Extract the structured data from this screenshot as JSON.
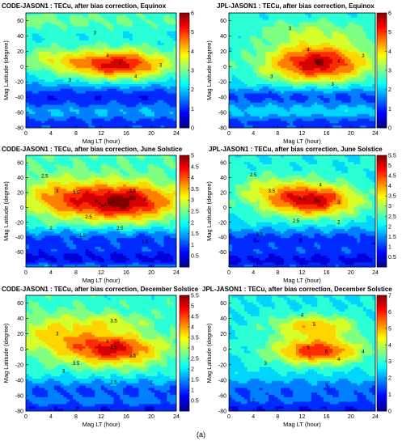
{
  "figure_label": "(a)",
  "colormap": [
    "#00008f",
    "#0000ff",
    "#0080ff",
    "#00ffff",
    "#80ff80",
    "#ffff00",
    "#ff8000",
    "#ff0000",
    "#800000"
  ],
  "chart_data": [
    {
      "type": "heatmap",
      "id": "p1",
      "title": "CODE-JASON1 : TECu, after bias correction, Equinox",
      "xlabel": "Mag LT (hour)",
      "ylabel": "Mag Latitude (degree)",
      "xlim": [
        0,
        24
      ],
      "ylim": [
        -80,
        70
      ],
      "xticks": [
        0,
        4,
        8,
        12,
        16,
        20,
        24
      ],
      "yticks": [
        -80,
        -60,
        -40,
        -20,
        0,
        20,
        40,
        60
      ],
      "colorbar": {
        "min": 0,
        "max": 6,
        "ticks": [
          0,
          1,
          2,
          3,
          4,
          5,
          6
        ]
      },
      "y_label_visible": true,
      "contour_labels": [
        {
          "x": 11,
          "y": 42,
          "t": "3"
        },
        {
          "x": 13,
          "y": 12,
          "t": "4"
        },
        {
          "x": 15,
          "y": 3,
          "t": "5"
        },
        {
          "x": 17.5,
          "y": -15,
          "t": "4"
        },
        {
          "x": 7,
          "y": -20,
          "t": "3"
        },
        {
          "x": 21.5,
          "y": 0,
          "t": "3"
        }
      ],
      "field": {
        "base": 2.3,
        "blobs": [
          {
            "cx": 14.5,
            "cy": 3,
            "sx": 5.5,
            "sy": 13,
            "a": 3.2
          },
          {
            "cx": 4,
            "cy": 10,
            "sx": 3,
            "sy": 10,
            "a": 1.0
          },
          {
            "cx": 0,
            "cy": 60,
            "sx": 24,
            "sy": 9,
            "a": 0.6
          }
        ],
        "lat_drop": [
          {
            "cy": -40,
            "sy": 12,
            "a": -1.4
          },
          {
            "cy": -75,
            "sy": 8,
            "a": -1.3
          }
        ],
        "vmax": 6
      }
    },
    {
      "type": "heatmap",
      "id": "p2",
      "title": "JPL-JASON1 : TECu, after bias correction, Equinox",
      "xlabel": "Mag LT (hour)",
      "ylabel": "Mag Latitude (degree)",
      "xlim": [
        0,
        24
      ],
      "ylim": [
        -80,
        70
      ],
      "xticks": [
        0,
        4,
        8,
        12,
        16,
        20,
        24
      ],
      "yticks": [
        -80,
        -60,
        -40,
        -20,
        0,
        20,
        40,
        60
      ],
      "colorbar": {
        "min": 0,
        "max": 6,
        "ticks": [
          0,
          1,
          2,
          3,
          4,
          5,
          6
        ]
      },
      "y_label_visible": false,
      "contour_labels": [
        {
          "x": 10,
          "y": 48,
          "t": "3"
        },
        {
          "x": 13,
          "y": 20,
          "t": "4"
        },
        {
          "x": 14.5,
          "y": 3,
          "t": "5"
        },
        {
          "x": 18,
          "y": 5,
          "t": "4"
        },
        {
          "x": 7,
          "y": -15,
          "t": "3"
        },
        {
          "x": 17,
          "y": -25,
          "t": "3"
        },
        {
          "x": 22,
          "y": 12,
          "t": "3"
        }
      ],
      "field": {
        "base": 2.4,
        "blobs": [
          {
            "cx": 14.5,
            "cy": 5,
            "sx": 5.5,
            "sy": 17,
            "a": 3.3
          },
          {
            "cx": 14,
            "cy": 45,
            "sx": 6,
            "sy": 10,
            "a": 0.8
          }
        ],
        "lat_drop": [
          {
            "cy": -40,
            "sy": 10,
            "a": -1.3
          },
          {
            "cy": -75,
            "sy": 8,
            "a": -1.4
          }
        ],
        "vmax": 6
      }
    },
    {
      "type": "heatmap",
      "id": "p3",
      "title": "CODE-JASON1 : TECu, after bias correction, June Solstice",
      "xlabel": "Mag LT (hour)",
      "ylabel": "Mag Latitude (degree)",
      "xlim": [
        0,
        24
      ],
      "ylim": [
        -80,
        70
      ],
      "xticks": [
        0,
        4,
        8,
        12,
        16,
        20,
        24
      ],
      "yticks": [
        -60,
        -40,
        -20,
        0,
        20,
        40,
        60
      ],
      "colorbar": {
        "min": 0,
        "max": 5,
        "ticks": [
          0.5,
          1,
          1.5,
          2,
          2.5,
          3,
          3.5,
          4,
          4.5,
          5
        ]
      },
      "y_label_visible": true,
      "contour_labels": [
        {
          "x": 3,
          "y": 40,
          "t": "2.5"
        },
        {
          "x": 5,
          "y": 20,
          "t": "3"
        },
        {
          "x": 8,
          "y": 18,
          "t": "3.5"
        },
        {
          "x": 13,
          "y": 2,
          "t": "4.5"
        },
        {
          "x": 17,
          "y": 20,
          "t": "3.5"
        },
        {
          "x": 19,
          "y": 8,
          "t": "4"
        },
        {
          "x": 10,
          "y": -15,
          "t": "2.5"
        },
        {
          "x": 15,
          "y": -30,
          "t": "2.5"
        },
        {
          "x": 4,
          "y": -30,
          "t": "2"
        },
        {
          "x": 9,
          "y": -40,
          "t": "1.5"
        },
        {
          "x": 19,
          "y": -48,
          "t": "1.5"
        }
      ],
      "field": {
        "base": 2.2,
        "blobs": [
          {
            "cx": 15,
            "cy": 8,
            "sx": 6,
            "sy": 17,
            "a": 2.8
          },
          {
            "cx": 5,
            "cy": 15,
            "sx": 4,
            "sy": 18,
            "a": 1.0
          }
        ],
        "lat_drop": [
          {
            "cy": -45,
            "sy": 12,
            "a": -1.3
          },
          {
            "cy": -70,
            "sy": 9,
            "a": -1.5
          }
        ],
        "vmax": 5.5
      }
    },
    {
      "type": "heatmap",
      "id": "p4",
      "title": "JPL-JASON1 : TECu, after bias correction, June Solstice",
      "xlabel": "Mag LT (hour)",
      "ylabel": "Mag Latitude (degree)",
      "xlim": [
        0,
        24
      ],
      "ylim": [
        -80,
        70
      ],
      "xticks": [
        0,
        4,
        8,
        12,
        16,
        20,
        24
      ],
      "yticks": [
        -60,
        -40,
        -20,
        0,
        20,
        40,
        60
      ],
      "colorbar": {
        "min": 0,
        "max": 5.5,
        "ticks": [
          0.5,
          1,
          1.5,
          2,
          2.5,
          3,
          3.5,
          4,
          4.5,
          5,
          5.5
        ]
      },
      "y_label_visible": false,
      "contour_labels": [
        {
          "x": 4,
          "y": 42,
          "t": "2.5"
        },
        {
          "x": 7,
          "y": 20,
          "t": "3.5"
        },
        {
          "x": 12,
          "y": 10,
          "t": "4.5"
        },
        {
          "x": 15,
          "y": 28,
          "t": "4"
        },
        {
          "x": 18,
          "y": 5,
          "t": "3"
        },
        {
          "x": 11,
          "y": -20,
          "t": "2.5"
        },
        {
          "x": 18,
          "y": -22,
          "t": "2"
        },
        {
          "x": 5,
          "y": -38,
          "t": "1.5"
        }
      ],
      "field": {
        "base": 2.1,
        "blobs": [
          {
            "cx": 13.5,
            "cy": 10,
            "sx": 5,
            "sy": 15,
            "a": 3.0
          },
          {
            "cx": 6,
            "cy": 25,
            "sx": 4,
            "sy": 15,
            "a": 0.8
          }
        ],
        "lat_drop": [
          {
            "cy": -45,
            "sy": 12,
            "a": -1.2
          },
          {
            "cy": -72,
            "sy": 9,
            "a": -1.4
          }
        ],
        "vmax": 5.5
      }
    },
    {
      "type": "heatmap",
      "id": "p5",
      "title": "CODE-JASON1 : TECu, after bias correction, December Solstice",
      "xlabel": "Mag LT (hour)",
      "ylabel": "Mag Latitude (degree)",
      "xlim": [
        0,
        24
      ],
      "ylim": [
        -80,
        70
      ],
      "xticks": [
        0,
        4,
        8,
        12,
        16,
        20,
        24
      ],
      "yticks": [
        -80,
        -60,
        -40,
        -20,
        0,
        20,
        40,
        60
      ],
      "colorbar": {
        "min": 0,
        "max": 5.5,
        "ticks": [
          0.5,
          1,
          1.5,
          2,
          2.5,
          3,
          3.5,
          4,
          4.5,
          5,
          5.5
        ]
      },
      "y_label_visible": true,
      "contour_labels": [
        {
          "x": 14,
          "y": 35,
          "t": "3.5"
        },
        {
          "x": 5,
          "y": 18,
          "t": "3"
        },
        {
          "x": 13,
          "y": 8,
          "t": "4"
        },
        {
          "x": 14,
          "y": 0,
          "t": "4.5"
        },
        {
          "x": 17,
          "y": -10,
          "t": "3.5"
        },
        {
          "x": 8,
          "y": -20,
          "t": "3.5"
        },
        {
          "x": 6,
          "y": -30,
          "t": "3"
        },
        {
          "x": 14,
          "y": -45,
          "t": "2.5"
        },
        {
          "x": 20,
          "y": -45,
          "t": "2"
        }
      ],
      "field": {
        "base": 2.3,
        "blobs": [
          {
            "cx": 14,
            "cy": 0,
            "sx": 5,
            "sy": 14,
            "a": 2.6
          },
          {
            "cx": 5,
            "cy": 20,
            "sx": 5,
            "sy": 18,
            "a": 1.2
          },
          {
            "cx": 14,
            "cy": 35,
            "sx": 4,
            "sy": 8,
            "a": 0.8
          }
        ],
        "lat_drop": [
          {
            "cy": -55,
            "sy": 12,
            "a": -1.2
          },
          {
            "cy": -78,
            "sy": 6,
            "a": -1.3
          }
        ],
        "vmax": 5.5
      }
    },
    {
      "type": "heatmap",
      "id": "p6",
      "title": "JPL-JASON1 : TECu, after bias correction, December Solstice",
      "xlabel": "Mag LT (hour)",
      "ylabel": "Mag Latitude (degree)",
      "xlim": [
        0,
        24
      ],
      "ylim": [
        -80,
        70
      ],
      "xticks": [
        0,
        4,
        8,
        12,
        16,
        20,
        24
      ],
      "yticks": [
        -80,
        -60,
        -40,
        -20,
        0,
        20,
        40,
        60
      ],
      "colorbar": {
        "min": 0,
        "max": 7,
        "ticks": [
          0,
          1,
          2,
          3,
          4,
          5,
          6,
          7
        ]
      },
      "y_label_visible": false,
      "contour_labels": [
        {
          "x": 12,
          "y": 42,
          "t": "4"
        },
        {
          "x": 14,
          "y": 30,
          "t": "5"
        },
        {
          "x": 13,
          "y": 0,
          "t": "5"
        },
        {
          "x": 16,
          "y": -5,
          "t": "6"
        },
        {
          "x": 18,
          "y": -15,
          "t": "4"
        },
        {
          "x": 22,
          "y": -5,
          "t": "4"
        },
        {
          "x": 6,
          "y": -20,
          "t": "3"
        },
        {
          "x": 16,
          "y": -48,
          "t": "3"
        },
        {
          "x": 4,
          "y": -68,
          "t": "2"
        }
      ],
      "field": {
        "base": 2.6,
        "blobs": [
          {
            "cx": 14.5,
            "cy": -2,
            "sx": 5,
            "sy": 12,
            "a": 3.4
          },
          {
            "cx": 14,
            "cy": 30,
            "sx": 5,
            "sy": 10,
            "a": 2.2
          }
        ],
        "lat_drop": [
          {
            "cy": -55,
            "sy": 12,
            "a": -1.1
          },
          {
            "cy": -78,
            "sy": 7,
            "a": -1.5
          }
        ],
        "vmax": 7
      }
    }
  ]
}
